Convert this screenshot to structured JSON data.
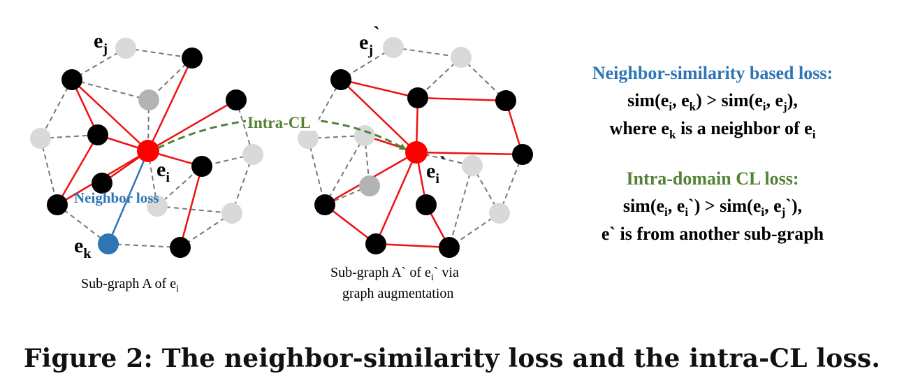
{
  "colors": {
    "red_node": "#ff0000",
    "black_node": "#000000",
    "gray_node": "#b3b3b3",
    "light_node": "#d9d9d9",
    "blue_node": "#2e75b6",
    "red_edge": "#ee1111",
    "dashed_edge": "#777777",
    "blue_text": "#2e75b6",
    "green_text": "#548235",
    "black_text": "#000000"
  },
  "subgraph_a": {
    "label_ej_main": "e",
    "label_ej_sub": "j",
    "label_ei_main": "e",
    "label_ei_sub": "i",
    "label_ek_main": "e",
    "label_ek_sub": "k",
    "neighbor_loss": "Neighbor loss",
    "caption_main": "Sub-graph A of e",
    "caption_sub": "i"
  },
  "subgraph_b": {
    "label_ej_main": "e",
    "label_ej_sub": "j",
    "label_ej_tick": "`",
    "label_ei_main": "e",
    "label_ei_sub": "i",
    "label_ei_tick": "`",
    "caption_line1_a": "Sub-graph A` of e",
    "caption_line1_sub": "i",
    "caption_line1_b": "` via",
    "caption_line2": "graph augmentation"
  },
  "intra_cl_label": "Intra-CL",
  "neighbor_block": {
    "title": "Neighbor-similarity based loss:",
    "l1": [
      "sim(e",
      "i",
      ", e",
      "k",
      ") > sim(e",
      "i",
      ", e",
      "j",
      "),"
    ],
    "l2": [
      "where e",
      "k",
      " is a neighbor of e",
      "i",
      ""
    ]
  },
  "intra_block": {
    "title": "Intra-domain CL loss:",
    "l1": [
      "sim(e",
      "i",
      ", e",
      "i",
      "`) > sim(e",
      "i",
      ", e",
      "j",
      "`),"
    ],
    "l2": [
      "e` is from another sub-graph"
    ]
  },
  "figure_caption": "Figure 2: The neighbor-similarity loss and the intra-CL loss."
}
